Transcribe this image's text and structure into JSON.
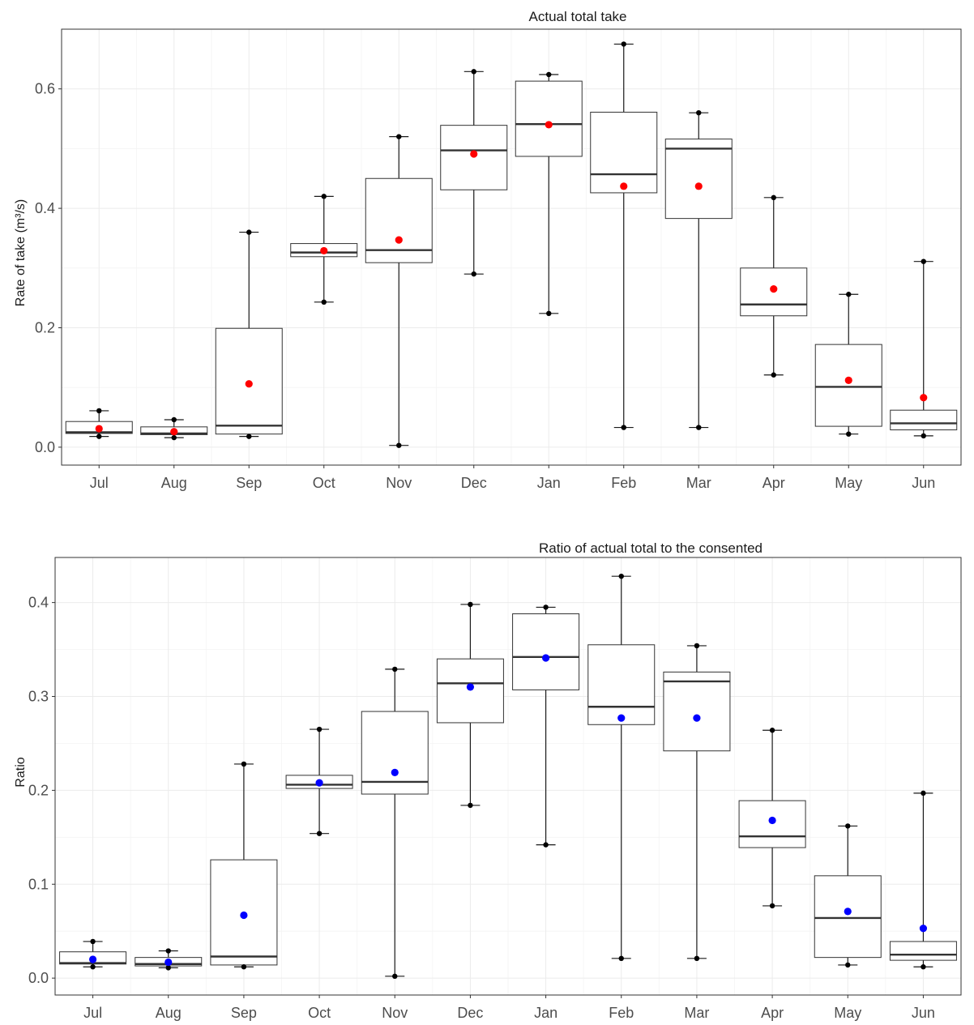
{
  "chart_data": [
    {
      "type": "box",
      "title": "Actual total take",
      "ylabel": "Rate of take (m³/s)",
      "xlabel": "",
      "categories": [
        "Jul",
        "Aug",
        "Sep",
        "Oct",
        "Nov",
        "Dec",
        "Jan",
        "Feb",
        "Mar",
        "Apr",
        "May",
        "Jun"
      ],
      "ylim": [
        -0.03,
        0.7
      ],
      "yticks": [
        0.0,
        0.2,
        0.4,
        0.6
      ],
      "ytick_labels": [
        "0.0",
        "0.2",
        "0.4",
        "0.6"
      ],
      "grid": true,
      "mean_color": "#ff0000",
      "boxes": [
        {
          "min": 0.018,
          "q1": 0.023,
          "median": 0.025,
          "q3": 0.043,
          "max": 0.061,
          "mean": 0.031
        },
        {
          "min": 0.016,
          "q1": 0.021,
          "median": 0.023,
          "q3": 0.034,
          "max": 0.046,
          "mean": 0.026
        },
        {
          "min": 0.018,
          "q1": 0.022,
          "median": 0.036,
          "q3": 0.199,
          "max": 0.36,
          "mean": 0.106
        },
        {
          "min": 0.243,
          "q1": 0.319,
          "median": 0.326,
          "q3": 0.341,
          "max": 0.42,
          "mean": 0.329
        },
        {
          "min": 0.003,
          "q1": 0.309,
          "median": 0.33,
          "q3": 0.45,
          "max": 0.52,
          "mean": 0.347
        },
        {
          "min": 0.29,
          "q1": 0.431,
          "median": 0.497,
          "q3": 0.539,
          "max": 0.629,
          "mean": 0.491
        },
        {
          "min": 0.224,
          "q1": 0.487,
          "median": 0.541,
          "q3": 0.613,
          "max": 0.624,
          "mean": 0.54
        },
        {
          "min": 0.033,
          "q1": 0.426,
          "median": 0.457,
          "q3": 0.561,
          "max": 0.675,
          "mean": 0.437
        },
        {
          "min": 0.033,
          "q1": 0.383,
          "median": 0.5,
          "q3": 0.516,
          "max": 0.56,
          "mean": 0.437
        },
        {
          "min": 0.121,
          "q1": 0.22,
          "median": 0.239,
          "q3": 0.3,
          "max": 0.418,
          "mean": 0.265
        },
        {
          "min": 0.022,
          "q1": 0.035,
          "median": 0.101,
          "q3": 0.172,
          "max": 0.256,
          "mean": 0.112
        },
        {
          "min": 0.019,
          "q1": 0.029,
          "median": 0.04,
          "q3": 0.062,
          "max": 0.311,
          "mean": 0.083
        }
      ]
    },
    {
      "type": "box",
      "title": "Ratio of actual total to the consented",
      "ylabel": "Ratio",
      "xlabel": "",
      "categories": [
        "Jul",
        "Aug",
        "Sep",
        "Oct",
        "Nov",
        "Dec",
        "Jan",
        "Feb",
        "Mar",
        "Apr",
        "May",
        "Jun"
      ],
      "ylim": [
        -0.018,
        0.448
      ],
      "yticks": [
        0.0,
        0.1,
        0.2,
        0.3,
        0.4
      ],
      "ytick_labels": [
        "0.0",
        "0.1",
        "0.2",
        "0.3",
        "0.4"
      ],
      "grid": true,
      "mean_color": "#0000ff",
      "boxes": [
        {
          "min": 0.012,
          "q1": 0.015,
          "median": 0.016,
          "q3": 0.028,
          "max": 0.039,
          "mean": 0.02
        },
        {
          "min": 0.011,
          "q1": 0.013,
          "median": 0.015,
          "q3": 0.022,
          "max": 0.029,
          "mean": 0.017
        },
        {
          "min": 0.012,
          "q1": 0.014,
          "median": 0.023,
          "q3": 0.126,
          "max": 0.228,
          "mean": 0.067
        },
        {
          "min": 0.154,
          "q1": 0.202,
          "median": 0.206,
          "q3": 0.216,
          "max": 0.265,
          "mean": 0.208
        },
        {
          "min": 0.002,
          "q1": 0.196,
          "median": 0.209,
          "q3": 0.284,
          "max": 0.329,
          "mean": 0.219
        },
        {
          "min": 0.184,
          "q1": 0.272,
          "median": 0.314,
          "q3": 0.34,
          "max": 0.398,
          "mean": 0.31
        },
        {
          "min": 0.142,
          "q1": 0.307,
          "median": 0.342,
          "q3": 0.388,
          "max": 0.395,
          "mean": 0.341
        },
        {
          "min": 0.021,
          "q1": 0.27,
          "median": 0.289,
          "q3": 0.355,
          "max": 0.428,
          "mean": 0.277
        },
        {
          "min": 0.021,
          "q1": 0.242,
          "median": 0.316,
          "q3": 0.326,
          "max": 0.354,
          "mean": 0.277
        },
        {
          "min": 0.077,
          "q1": 0.139,
          "median": 0.151,
          "q3": 0.189,
          "max": 0.264,
          "mean": 0.168
        },
        {
          "min": 0.014,
          "q1": 0.022,
          "median": 0.064,
          "q3": 0.109,
          "max": 0.162,
          "mean": 0.071
        },
        {
          "min": 0.012,
          "q1": 0.019,
          "median": 0.025,
          "q3": 0.039,
          "max": 0.197,
          "mean": 0.053
        }
      ]
    }
  ]
}
